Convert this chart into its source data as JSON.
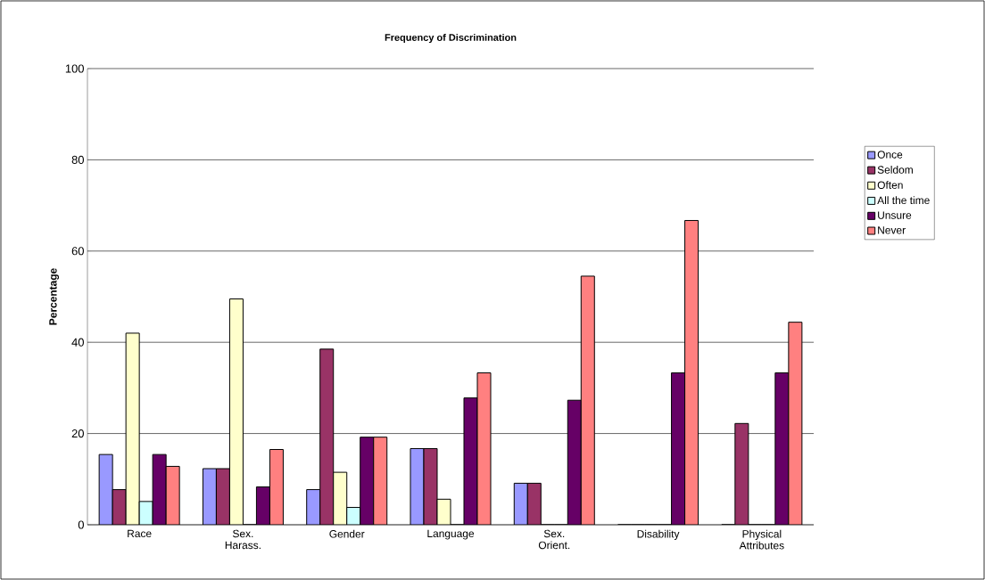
{
  "chart_data": {
    "type": "bar",
    "title": "Frequency of Discrimination",
    "ylabel": "Percentage",
    "categories": [
      "Race",
      "Sex. Harass.",
      "Gender",
      "Language",
      "Sex. Orient.",
      "Disability",
      "Physical Attributes"
    ],
    "series": [
      {
        "name": "Once",
        "color": "#9999ff",
        "values": [
          15.4,
          12.3,
          7.7,
          16.7,
          9.1,
          0,
          0
        ]
      },
      {
        "name": "Seldom",
        "color": "#993366",
        "values": [
          7.7,
          12.3,
          38.5,
          16.7,
          9.1,
          0,
          22.2
        ]
      },
      {
        "name": "Often",
        "color": "#ffffcc",
        "values": [
          42.0,
          49.5,
          11.5,
          5.6,
          0,
          0,
          0
        ]
      },
      {
        "name": "All the time",
        "color": "#ccffff",
        "values": [
          5.1,
          0,
          3.8,
          0,
          0,
          0,
          0
        ]
      },
      {
        "name": "Unsure",
        "color": "#660066",
        "values": [
          15.4,
          8.3,
          19.2,
          27.8,
          27.3,
          33.3,
          33.3
        ]
      },
      {
        "name": "Never",
        "color": "#ff8080",
        "values": [
          12.8,
          16.5,
          19.2,
          33.3,
          54.5,
          66.7,
          44.4
        ]
      }
    ],
    "ylim": [
      0,
      100
    ],
    "yticks": [
      0,
      20,
      40,
      60,
      80,
      100
    ],
    "grid": "y",
    "legend": "right"
  }
}
